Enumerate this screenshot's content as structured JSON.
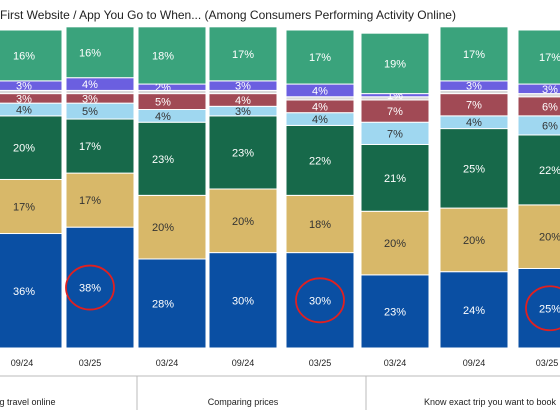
{
  "chart_data": {
    "type": "bar",
    "stacked": true,
    "title": "First Website / App You Go to When... (Among Consumers Performing Activity Online)",
    "groups": [
      {
        "label": "ng travel online",
        "bars": [
          0,
          1
        ]
      },
      {
        "label": "Comparing prices",
        "bars": [
          2,
          3,
          4
        ]
      },
      {
        "label": "Know exact trip you want to book",
        "bars": [
          5,
          6,
          7
        ]
      }
    ],
    "categories": [
      "09/24",
      "03/25",
      "03/24",
      "09/24",
      "03/25",
      "03/24",
      "09/24",
      "03/25"
    ],
    "series": [
      {
        "color": "#0a4fa3",
        "values": [
          36,
          38,
          28,
          30,
          30,
          23,
          24,
          25
        ]
      },
      {
        "color": "#d8b869",
        "values": [
          17,
          17,
          20,
          20,
          18,
          20,
          20,
          20
        ]
      },
      {
        "color": "#17694a",
        "values": [
          20,
          17,
          23,
          23,
          22,
          21,
          25,
          22
        ]
      },
      {
        "color": "#9fd7f0",
        "values": [
          4,
          5,
          4,
          3,
          4,
          7,
          4,
          6
        ]
      },
      {
        "color": "#a14a55",
        "values": [
          3,
          3,
          5,
          4,
          4,
          7,
          7,
          6
        ]
      },
      {
        "color": "#d9d9d9",
        "values": [
          1,
          1,
          1,
          1,
          1,
          1,
          1,
          1
        ]
      },
      {
        "color": "#6b5fe0",
        "values": [
          3,
          4,
          2,
          3,
          4,
          1,
          3,
          3
        ]
      },
      {
        "color": "#3aa37c",
        "values": [
          16,
          16,
          18,
          17,
          17,
          19,
          17,
          17
        ]
      }
    ],
    "value_labels": [
      [
        "36%",
        "38%",
        "28%",
        "30%",
        "30%",
        "23%",
        "24%",
        "25%"
      ],
      [
        "17%",
        "17%",
        "20%",
        "20%",
        "18%",
        "20%",
        "20%",
        "20%"
      ],
      [
        "20%",
        "17%",
        "23%",
        "23%",
        "22%",
        "21%",
        "25%",
        "22%"
      ],
      [
        "4%",
        "5%",
        "4%",
        "3%",
        "4%",
        "7%",
        "4%",
        "6%"
      ],
      [
        "3%",
        "3%",
        "5%",
        "4%",
        "4%",
        "7%",
        "7%",
        "6%"
      ],
      [
        "",
        "",
        "",
        "",
        "",
        "",
        "",
        ""
      ],
      [
        "3%",
        "4%",
        "2%",
        "3%",
        "4%",
        "1%",
        "3%",
        "3%"
      ],
      [
        "16%",
        "16%",
        "18%",
        "17%",
        "17%",
        "19%",
        "17%",
        "17%"
      ]
    ],
    "circled": [
      1,
      4,
      7
    ],
    "circle_color": "#e02020",
    "ylim": [
      0,
      100
    ],
    "grid": false,
    "legend": "none"
  }
}
